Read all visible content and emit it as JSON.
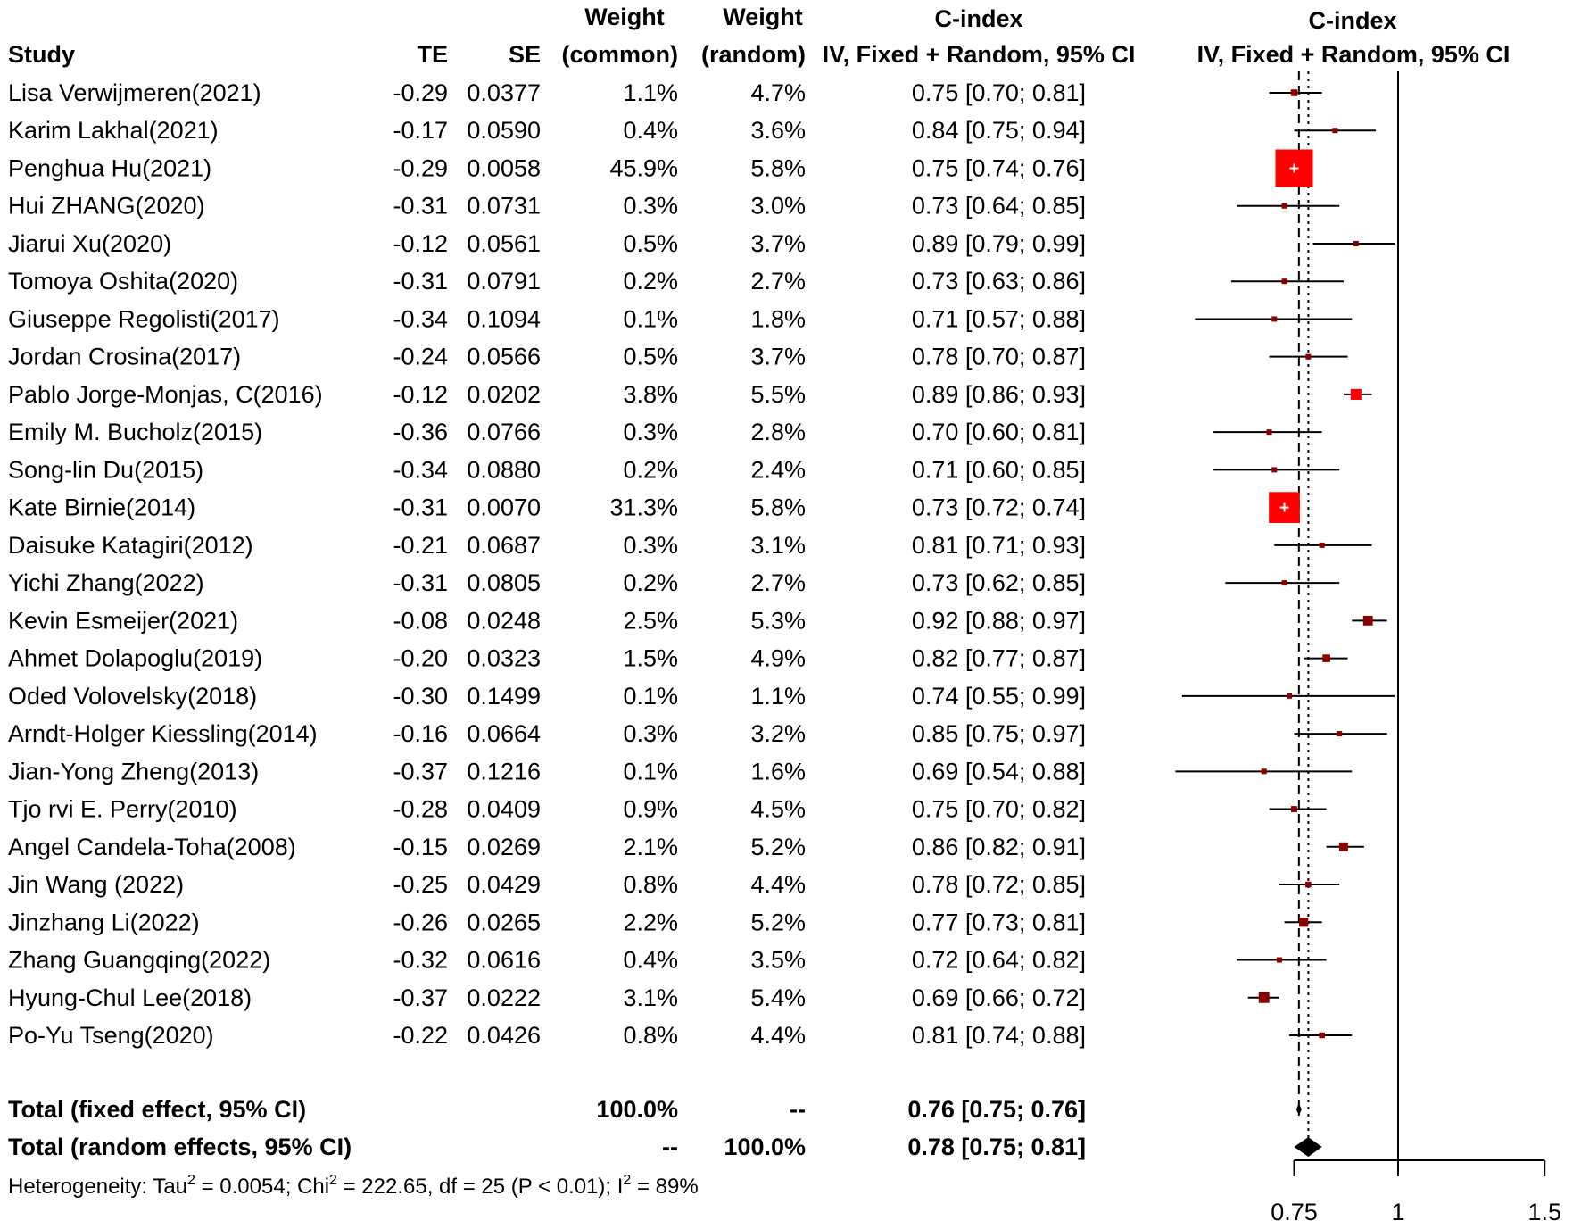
{
  "chart_data": {
    "type": "forest",
    "scale": "log",
    "headers": {
      "study": "Study",
      "te": "TE",
      "se": "SE",
      "weight_common": [
        "Weight",
        "(common)"
      ],
      "weight_random": [
        "Weight",
        "(random)"
      ],
      "ci": [
        "C-index",
        "IV, Fixed + Random, 95% CI"
      ],
      "plot": [
        "C-index",
        "IV, Fixed + Random, 95% CI"
      ]
    },
    "studies": [
      {
        "study": "Lisa Verwijmeren(2021)",
        "te": "-0.29",
        "se": "0.0377",
        "wc": "1.1%",
        "wr": "4.7%",
        "ci": "0.75 [0.70; 0.81]",
        "est": 0.75,
        "lo": 0.7,
        "hi": 0.81
      },
      {
        "study": "Karim Lakhal(2021)",
        "te": "-0.17",
        "se": "0.0590",
        "wc": "0.4%",
        "wr": "3.6%",
        "ci": "0.84 [0.75; 0.94]",
        "est": 0.84,
        "lo": 0.75,
        "hi": 0.94
      },
      {
        "study": "Penghua Hu(2021)",
        "te": "-0.29",
        "se": "0.0058",
        "wc": "45.9%",
        "wr": "5.8%",
        "ci": "0.75 [0.74; 0.76]",
        "est": 0.75,
        "lo": 0.74,
        "hi": 0.76
      },
      {
        "study": "Hui ZHANG(2020)",
        "te": "-0.31",
        "se": "0.0731",
        "wc": "0.3%",
        "wr": "3.0%",
        "ci": "0.73 [0.64; 0.85]",
        "est": 0.73,
        "lo": 0.64,
        "hi": 0.85
      },
      {
        "study": "Jiarui Xu(2020)",
        "te": "-0.12",
        "se": "0.0561",
        "wc": "0.5%",
        "wr": "3.7%",
        "ci": "0.89 [0.79; 0.99]",
        "est": 0.89,
        "lo": 0.79,
        "hi": 0.99
      },
      {
        "study": "Tomoya Oshita(2020)",
        "te": "-0.31",
        "se": "0.0791",
        "wc": "0.2%",
        "wr": "2.7%",
        "ci": "0.73 [0.63; 0.86]",
        "est": 0.73,
        "lo": 0.63,
        "hi": 0.86
      },
      {
        "study": "Giuseppe Regolisti(2017)",
        "te": "-0.34",
        "se": "0.1094",
        "wc": "0.1%",
        "wr": "1.8%",
        "ci": "0.71 [0.57; 0.88]",
        "est": 0.71,
        "lo": 0.57,
        "hi": 0.88
      },
      {
        "study": "Jordan Crosina(2017)",
        "te": "-0.24",
        "se": "0.0566",
        "wc": "0.5%",
        "wr": "3.7%",
        "ci": "0.78 [0.70; 0.87]",
        "est": 0.78,
        "lo": 0.7,
        "hi": 0.87
      },
      {
        "study": "Pablo Jorge-Monjas, C(2016)",
        "te": "-0.12",
        "se": "0.0202",
        "wc": "3.8%",
        "wr": "5.5%",
        "ci": "0.89 [0.86; 0.93]",
        "est": 0.89,
        "lo": 0.86,
        "hi": 0.93
      },
      {
        "study": "Emily M. Bucholz(2015)",
        "te": "-0.36",
        "se": "0.0766",
        "wc": "0.3%",
        "wr": "2.8%",
        "ci": "0.70 [0.60; 0.81]",
        "est": 0.7,
        "lo": 0.6,
        "hi": 0.81
      },
      {
        "study": "Song-lin Du(2015)",
        "te": "-0.34",
        "se": "0.0880",
        "wc": "0.2%",
        "wr": "2.4%",
        "ci": "0.71 [0.60; 0.85]",
        "est": 0.71,
        "lo": 0.6,
        "hi": 0.85
      },
      {
        "study": "Kate Birnie(2014)",
        "te": "-0.31",
        "se": "0.0070",
        "wc": "31.3%",
        "wr": "5.8%",
        "ci": "0.73 [0.72; 0.74]",
        "est": 0.73,
        "lo": 0.72,
        "hi": 0.74
      },
      {
        "study": "Daisuke Katagiri(2012)",
        "te": "-0.21",
        "se": "0.0687",
        "wc": "0.3%",
        "wr": "3.1%",
        "ci": "0.81 [0.71; 0.93]",
        "est": 0.81,
        "lo": 0.71,
        "hi": 0.93
      },
      {
        "study": "Yichi Zhang(2022)",
        "te": "-0.31",
        "se": "0.0805",
        "wc": "0.2%",
        "wr": "2.7%",
        "ci": "0.73 [0.62; 0.85]",
        "est": 0.73,
        "lo": 0.62,
        "hi": 0.85
      },
      {
        "study": "Kevin Esmeijer(2021)",
        "te": "-0.08",
        "se": "0.0248",
        "wc": "2.5%",
        "wr": "5.3%",
        "ci": "0.92 [0.88; 0.97]",
        "est": 0.92,
        "lo": 0.88,
        "hi": 0.97
      },
      {
        "study": "Ahmet Dolapoglu(2019)",
        "te": "-0.20",
        "se": "0.0323",
        "wc": "1.5%",
        "wr": "4.9%",
        "ci": "0.82 [0.77; 0.87]",
        "est": 0.82,
        "lo": 0.77,
        "hi": 0.87
      },
      {
        "study": "Oded Volovelsky(2018)",
        "te": "-0.30",
        "se": "0.1499",
        "wc": "0.1%",
        "wr": "1.1%",
        "ci": "0.74 [0.55; 0.99]",
        "est": 0.74,
        "lo": 0.55,
        "hi": 0.99
      },
      {
        "study": "Arndt-Holger Kiessling(2014)",
        "te": "-0.16",
        "se": "0.0664",
        "wc": "0.3%",
        "wr": "3.2%",
        "ci": "0.85 [0.75; 0.97]",
        "est": 0.85,
        "lo": 0.75,
        "hi": 0.97
      },
      {
        "study": "Jian-Yong Zheng(2013)",
        "te": "-0.37",
        "se": "0.1216",
        "wc": "0.1%",
        "wr": "1.6%",
        "ci": "0.69 [0.54; 0.88]",
        "est": 0.69,
        "lo": 0.54,
        "hi": 0.88
      },
      {
        "study": "Tjo rvi E. Perry(2010)",
        "te": "-0.28",
        "se": "0.0409",
        "wc": "0.9%",
        "wr": "4.5%",
        "ci": "0.75 [0.70; 0.82]",
        "est": 0.75,
        "lo": 0.7,
        "hi": 0.82
      },
      {
        "study": "Angel Candela-Toha(2008)",
        "te": "-0.15",
        "se": "0.0269",
        "wc": "2.1%",
        "wr": "5.2%",
        "ci": "0.86 [0.82; 0.91]",
        "est": 0.86,
        "lo": 0.82,
        "hi": 0.91
      },
      {
        "study": "Jin Wang (2022)",
        "te": "-0.25",
        "se": "0.0429",
        "wc": "0.8%",
        "wr": "4.4%",
        "ci": "0.78 [0.72; 0.85]",
        "est": 0.78,
        "lo": 0.72,
        "hi": 0.85
      },
      {
        "study": "Jinzhang Li(2022)",
        "te": "-0.26",
        "se": "0.0265",
        "wc": "2.2%",
        "wr": "5.2%",
        "ci": "0.77 [0.73; 0.81]",
        "est": 0.77,
        "lo": 0.73,
        "hi": 0.81
      },
      {
        "study": "Zhang Guangqing(2022)",
        "te": "-0.32",
        "se": "0.0616",
        "wc": "0.4%",
        "wr": "3.5%",
        "ci": "0.72 [0.64; 0.82]",
        "est": 0.72,
        "lo": 0.64,
        "hi": 0.82
      },
      {
        "study": "Hyung-Chul Lee(2018)",
        "te": "-0.37",
        "se": "0.0222",
        "wc": "3.1%",
        "wr": "5.4%",
        "ci": "0.69 [0.66; 0.72]",
        "est": 0.69,
        "lo": 0.66,
        "hi": 0.72
      },
      {
        "study": "Po-Yu Tseng(2020)",
        "te": "-0.22",
        "se": "0.0426",
        "wc": "0.8%",
        "wr": "4.4%",
        "ci": "0.81 [0.74; 0.88]",
        "est": 0.81,
        "lo": 0.74,
        "hi": 0.88
      }
    ],
    "totals": [
      {
        "label": "Total (fixed effect, 95% CI)",
        "wc": "100.0%",
        "wr": "--",
        "ci": "0.76 [0.75; 0.76]",
        "est": 0.76,
        "lo": 0.75,
        "hi": 0.76
      },
      {
        "label": "Total (random effects, 95% CI)",
        "wc": "--",
        "wr": "100.0%",
        "ci": "0.78 [0.75; 0.81]",
        "est": 0.78,
        "lo": 0.75,
        "hi": 0.81
      }
    ],
    "heterogeneity": {
      "parts": [
        "Heterogeneity: Tau",
        "2",
        " = 0.0054; Chi",
        "2",
        " = 222.65, df = 25 (P < 0.01); I",
        "2",
        " = 89%"
      ]
    },
    "x_ticks": [
      {
        "value": 0.75,
        "label": "0.75"
      },
      {
        "value": 1,
        "label": "1"
      },
      {
        "value": 1.5,
        "label": "1.5"
      }
    ],
    "reference_line": 1,
    "colors": {
      "square": "#ff0000",
      "square_outline": "#8b0000",
      "line": "#000000"
    }
  }
}
